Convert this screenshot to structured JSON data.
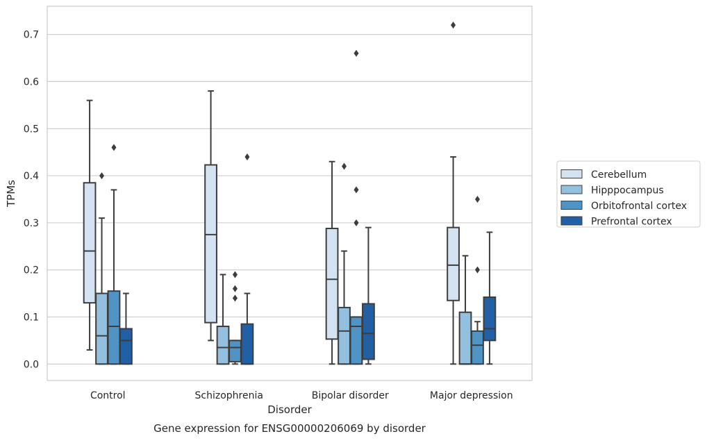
{
  "chart_data": {
    "type": "box",
    "title": "",
    "caption": "Gene expression for ENSG00000206069 by disorder",
    "xlabel": "Disorder",
    "ylabel": "TPMs",
    "ylim": [
      -0.035,
      0.76
    ],
    "yticks": [
      0.0,
      0.1,
      0.2,
      0.3,
      0.4,
      0.5,
      0.6,
      0.7
    ],
    "ytick_labels": [
      "0.0",
      "0.1",
      "0.2",
      "0.3",
      "0.4",
      "0.5",
      "0.6",
      "0.7"
    ],
    "grid": "horizontal",
    "legend_position": "right",
    "categories": [
      "Control",
      "Schizophrenia",
      "Bipolar disorder",
      "Major depression"
    ],
    "series": [
      {
        "name": "Cerebellum",
        "color": "#d4e3f2",
        "boxes": [
          {
            "whislo": 0.03,
            "q1": 0.13,
            "med": 0.24,
            "q3": 0.385,
            "whishi": 0.56,
            "fliers": []
          },
          {
            "whislo": 0.05,
            "q1": 0.088,
            "med": 0.275,
            "q3": 0.423,
            "whishi": 0.58,
            "fliers": []
          },
          {
            "whislo": 0.0,
            "q1": 0.053,
            "med": 0.18,
            "q3": 0.288,
            "whishi": 0.43,
            "fliers": []
          },
          {
            "whislo": 0.0,
            "q1": 0.135,
            "med": 0.21,
            "q3": 0.29,
            "whishi": 0.44,
            "fliers": [
              0.72
            ]
          }
        ]
      },
      {
        "name": "Hipppocampus",
        "color": "#93c0df",
        "boxes": [
          {
            "whislo": 0.0,
            "q1": 0.0,
            "med": 0.06,
            "q3": 0.15,
            "whishi": 0.31,
            "fliers": [
              0.4
            ]
          },
          {
            "whislo": 0.0,
            "q1": 0.0,
            "med": 0.035,
            "q3": 0.08,
            "whishi": 0.19,
            "fliers": []
          },
          {
            "whislo": 0.0,
            "q1": 0.0,
            "med": 0.07,
            "q3": 0.12,
            "whishi": 0.24,
            "fliers": [
              0.42
            ]
          },
          {
            "whislo": 0.0,
            "q1": 0.0,
            "med": 0.0,
            "q3": 0.11,
            "whishi": 0.23,
            "fliers": []
          }
        ]
      },
      {
        "name": "Orbitofrontal cortex",
        "color": "#5094c6",
        "boxes": [
          {
            "whislo": 0.0,
            "q1": 0.0,
            "med": 0.08,
            "q3": 0.155,
            "whishi": 0.37,
            "fliers": [
              0.46
            ]
          },
          {
            "whislo": 0.0,
            "q1": 0.005,
            "med": 0.035,
            "q3": 0.05,
            "whishi": 0.05,
            "fliers": [
              0.14,
              0.16,
              0.19
            ]
          },
          {
            "whislo": 0.0,
            "q1": 0.0,
            "med": 0.08,
            "q3": 0.1,
            "whishi": 0.1,
            "fliers": [
              0.3,
              0.37,
              0.66
            ]
          },
          {
            "whislo": 0.0,
            "q1": 0.0,
            "med": 0.04,
            "q3": 0.07,
            "whishi": 0.09,
            "fliers": [
              0.2,
              0.35
            ]
          }
        ]
      },
      {
        "name": "Prefrontal cortex",
        "color": "#2260a6",
        "boxes": [
          {
            "whislo": 0.0,
            "q1": 0.0,
            "med": 0.05,
            "q3": 0.075,
            "whishi": 0.15,
            "fliers": []
          },
          {
            "whislo": 0.0,
            "q1": 0.0,
            "med": 0.0,
            "q3": 0.085,
            "whishi": 0.15,
            "fliers": [
              0.44
            ]
          },
          {
            "whislo": 0.0,
            "q1": 0.01,
            "med": 0.065,
            "q3": 0.128,
            "whishi": 0.29,
            "fliers": []
          },
          {
            "whislo": 0.0,
            "q1": 0.05,
            "med": 0.075,
            "q3": 0.142,
            "whishi": 0.28,
            "fliers": []
          }
        ]
      }
    ]
  }
}
